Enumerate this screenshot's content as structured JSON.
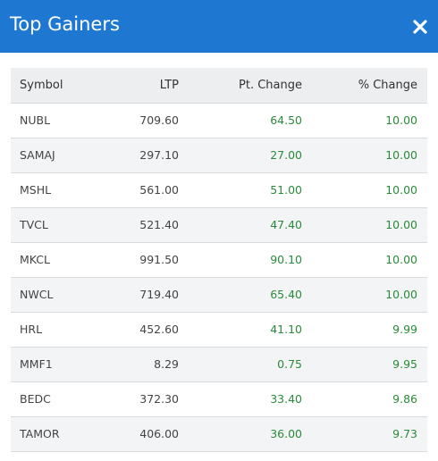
{
  "header": {
    "title": "Top Gainers",
    "close_icon": "close-icon"
  },
  "colors": {
    "header_bg": "#1e78d2",
    "positive": "#2a8a3a"
  },
  "table": {
    "columns": [
      "Symbol",
      "LTP",
      "Pt. Change",
      "% Change"
    ],
    "rows": [
      {
        "symbol": "NUBL",
        "ltp": "709.60",
        "pt_change": "64.50",
        "pct_change": "10.00"
      },
      {
        "symbol": "SAMAJ",
        "ltp": "297.10",
        "pt_change": "27.00",
        "pct_change": "10.00"
      },
      {
        "symbol": "MSHL",
        "ltp": "561.00",
        "pt_change": "51.00",
        "pct_change": "10.00"
      },
      {
        "symbol": "TVCL",
        "ltp": "521.40",
        "pt_change": "47.40",
        "pct_change": "10.00"
      },
      {
        "symbol": "MKCL",
        "ltp": "991.50",
        "pt_change": "90.10",
        "pct_change": "10.00"
      },
      {
        "symbol": "NWCL",
        "ltp": "719.40",
        "pt_change": "65.40",
        "pct_change": "10.00"
      },
      {
        "symbol": "HRL",
        "ltp": "452.60",
        "pt_change": "41.10",
        "pct_change": "9.99"
      },
      {
        "symbol": "MMF1",
        "ltp": "8.29",
        "pt_change": "0.75",
        "pct_change": "9.95"
      },
      {
        "symbol": "BEDC",
        "ltp": "372.30",
        "pt_change": "33.40",
        "pct_change": "9.86"
      },
      {
        "symbol": "TAMOR",
        "ltp": "406.00",
        "pt_change": "36.00",
        "pct_change": "9.73"
      }
    ]
  }
}
